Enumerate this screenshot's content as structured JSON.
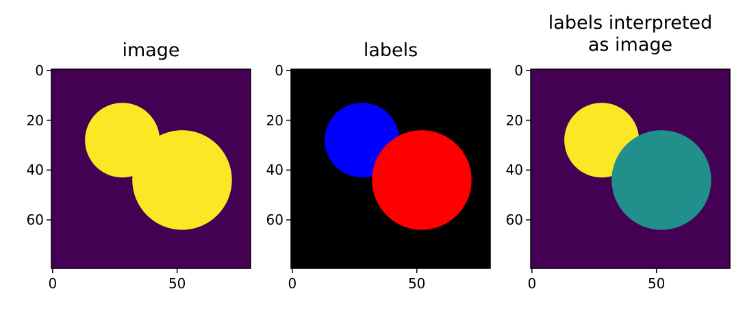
{
  "chart_data": [
    {
      "type": "heatmap",
      "title": "image",
      "xticks": [
        0,
        50
      ],
      "yticks": [
        0,
        20,
        40,
        60
      ],
      "xlim": [
        -0.5,
        79.5
      ],
      "ylim": [
        79.5,
        -0.5
      ],
      "background_color": "#440154",
      "circles": [
        {
          "cx": 28,
          "cy": 28,
          "r": 15,
          "value": 1,
          "color": "#fde725"
        },
        {
          "cx": 52,
          "cy": 44,
          "r": 20,
          "value": 1,
          "color": "#fde725"
        }
      ]
    },
    {
      "type": "heatmap",
      "title": "labels",
      "xticks": [
        0,
        50
      ],
      "yticks": [
        0,
        20,
        40,
        60
      ],
      "xlim": [
        -0.5,
        79.5
      ],
      "ylim": [
        79.5,
        -0.5
      ],
      "background_color": "#000000",
      "circles": [
        {
          "cx": 28,
          "cy": 28,
          "r": 15,
          "label": 1,
          "color": "#0000ff"
        },
        {
          "cx": 52,
          "cy": 44,
          "r": 20,
          "label": 2,
          "color": "#ff0000"
        }
      ]
    },
    {
      "type": "heatmap",
      "title": "labels interpreted\nas image",
      "xticks": [
        0,
        50
      ],
      "yticks": [
        0,
        20,
        40,
        60
      ],
      "xlim": [
        -0.5,
        79.5
      ],
      "ylim": [
        79.5,
        -0.5
      ],
      "background_color": "#440154",
      "circles": [
        {
          "cx": 28,
          "cy": 28,
          "r": 15,
          "value": 2,
          "color": "#fde725"
        },
        {
          "cx": 52,
          "cy": 44,
          "r": 20,
          "value": 1,
          "color": "#21908d"
        }
      ]
    }
  ]
}
